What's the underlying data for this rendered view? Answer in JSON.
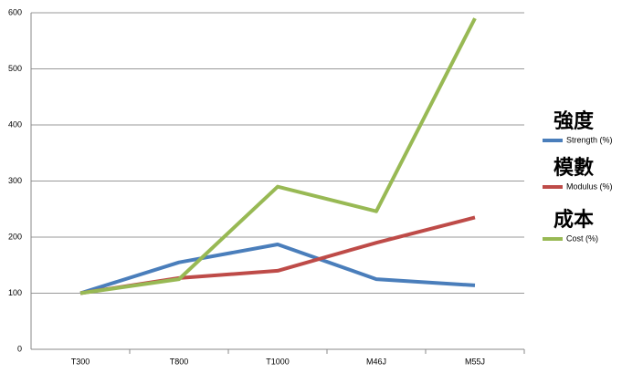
{
  "chart_data": {
    "type": "line",
    "categories": [
      "T300",
      "T800",
      "T1000",
      "M46J",
      "M55J"
    ],
    "series": [
      {
        "name": "Strength (%)",
        "color": "#4a7ebb",
        "values": [
          100,
          155,
          187,
          125,
          114
        ]
      },
      {
        "name": "Modulus (%)",
        "color": "#be4b48",
        "values": [
          100,
          127,
          140,
          190,
          235
        ]
      },
      {
        "name": "Cost (%)",
        "color": "#98b954",
        "values": [
          100,
          125,
          290,
          246,
          590
        ]
      }
    ],
    "annotations": [
      "強度",
      "模數",
      "成本"
    ],
    "ylim": [
      0,
      600
    ],
    "yticks": [
      0,
      100,
      200,
      300,
      400,
      500,
      600
    ],
    "grid": true,
    "legend": "right"
  }
}
